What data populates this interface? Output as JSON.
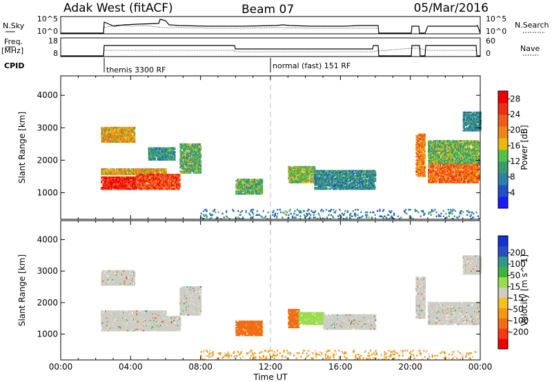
{
  "header": {
    "radar": "Adak West (fitACF)",
    "beam": "Beam 07",
    "date": "05/Mar/2016"
  },
  "nsky_panel": {
    "left_label": "N.Sky",
    "left_ticks": [
      "10^5",
      "10^0"
    ],
    "right_ticks": [
      "10^5",
      "10^0"
    ],
    "right_label": "N.Search"
  },
  "freq_panel": {
    "left_label_1": "Freq.",
    "left_label_2": "[MHz]",
    "left_ticks": [
      "18",
      "8"
    ],
    "right_ticks": [
      "60",
      "0"
    ],
    "right_label": "Nave"
  },
  "cpid": {
    "label": "CPID",
    "segments": [
      {
        "start_hour": 2.3,
        "name": "themis 3300 RF"
      },
      {
        "start_hour": 12.0,
        "name": "normal (fast) 151 RF"
      }
    ]
  },
  "colors": {
    "power_scale": [
      "#1a1aff",
      "#1f4fc9",
      "#2e7fa8",
      "#3a9a6e",
      "#4fc24a",
      "#e8b90e",
      "#f08418",
      "#f05a1a",
      "#ee2e14",
      "#ee0000"
    ],
    "velocity_scale": [
      "#ee0000",
      "#f53a12",
      "#f26c12",
      "#f59a10",
      "#f5c023",
      "#cdcdc5",
      "#9adc4a",
      "#3fb33e",
      "#2e9a8a",
      "#2a4fc0",
      "#1530d5"
    ]
  },
  "chart_data": [
    {
      "type": "heatmap",
      "name": "power",
      "ylabel": "Slant Range [km]",
      "yticks": [
        "1000",
        "2000",
        "3000",
        "4000"
      ],
      "ylim": [
        180,
        4600
      ],
      "xlim": [
        0,
        24
      ],
      "colorbar_label": "Power [dB]",
      "colorbar_ticks": [
        "4",
        "8",
        "12",
        "16",
        "20",
        "24",
        "28"
      ],
      "clim": [
        0,
        30
      ],
      "regions": [
        {
          "x": [
            2.3,
            4.2
          ],
          "y": [
            2550,
            3000
          ],
          "v": 18
        },
        {
          "x": [
            2.3,
            6.0
          ],
          "y": [
            1550,
            1750
          ],
          "v": 18
        },
        {
          "x": [
            2.3,
            4.3
          ],
          "y": [
            1100,
            1500
          ],
          "v": 27
        },
        {
          "x": [
            4.3,
            6.8
          ],
          "y": [
            1100,
            1550
          ],
          "v": 24
        },
        {
          "x": [
            6.8,
            8.0
          ],
          "y": [
            1600,
            2500
          ],
          "v": 12
        },
        {
          "x": [
            5.0,
            6.5
          ],
          "y": [
            2000,
            2400
          ],
          "v": 10
        },
        {
          "x": [
            10.0,
            11.5
          ],
          "y": [
            950,
            1400
          ],
          "v": 12
        },
        {
          "x": [
            13.0,
            14.5
          ],
          "y": [
            1300,
            1800
          ],
          "v": 14
        },
        {
          "x": [
            14.5,
            18.0
          ],
          "y": [
            1100,
            1700
          ],
          "v": 9
        },
        {
          "x": [
            20.3,
            20.8
          ],
          "y": [
            1500,
            2800
          ],
          "v": 20
        },
        {
          "x": [
            21.0,
            23.9
          ],
          "y": [
            1300,
            2000
          ],
          "v": 22
        },
        {
          "x": [
            21.0,
            23.9
          ],
          "y": [
            1900,
            2600
          ],
          "v": 13
        },
        {
          "x": [
            23.0,
            24.0
          ],
          "y": [
            2900,
            3500
          ],
          "v": 9
        },
        {
          "x": [
            8.0,
            24.0
          ],
          "y": [
            180,
            500
          ],
          "v": 8
        }
      ]
    },
    {
      "type": "heatmap",
      "name": "velocity",
      "ylabel": "Slant Range [km]",
      "yticks": [
        "1000",
        "2000",
        "3000",
        "4000"
      ],
      "ylim": [
        180,
        4600
      ],
      "xlim": [
        0,
        24
      ],
      "xticks": [
        "00:00",
        "04:00",
        "08:00",
        "12:00",
        "16:00",
        "20:00",
        "00:00"
      ],
      "xlabel": "Time UT",
      "colorbar_label": "Velocity [m s^-1]",
      "colorbar_ticks": [
        "-200",
        "-100",
        "-50",
        "-15",
        "15",
        "50",
        "100",
        "200"
      ],
      "regions": [
        {
          "x": [
            2.3,
            4.2
          ],
          "y": [
            2550,
            3000
          ],
          "v": 0
        },
        {
          "x": [
            2.3,
            6.0
          ],
          "y": [
            1550,
            1750
          ],
          "v": 0
        },
        {
          "x": [
            2.3,
            6.8
          ],
          "y": [
            1100,
            1550
          ],
          "v": 0
        },
        {
          "x": [
            6.8,
            8.0
          ],
          "y": [
            1600,
            2500
          ],
          "v": 0
        },
        {
          "x": [
            10.0,
            11.5
          ],
          "y": [
            950,
            1400
          ],
          "v": -60
        },
        {
          "x": [
            13.0,
            13.6
          ],
          "y": [
            1200,
            1800
          ],
          "v": -70
        },
        {
          "x": [
            13.6,
            15.0
          ],
          "y": [
            1300,
            1700
          ],
          "v": 30
        },
        {
          "x": [
            15.0,
            18.0
          ],
          "y": [
            1150,
            1600
          ],
          "v": 0
        },
        {
          "x": [
            20.3,
            20.8
          ],
          "y": [
            1500,
            2800
          ],
          "v": 0
        },
        {
          "x": [
            21.0,
            23.9
          ],
          "y": [
            1300,
            2000
          ],
          "v": 0
        },
        {
          "x": [
            23.0,
            24.0
          ],
          "y": [
            2900,
            3500
          ],
          "v": 0
        },
        {
          "x": [
            8.0,
            24.0
          ],
          "y": [
            180,
            500
          ],
          "v": -20
        }
      ]
    }
  ]
}
